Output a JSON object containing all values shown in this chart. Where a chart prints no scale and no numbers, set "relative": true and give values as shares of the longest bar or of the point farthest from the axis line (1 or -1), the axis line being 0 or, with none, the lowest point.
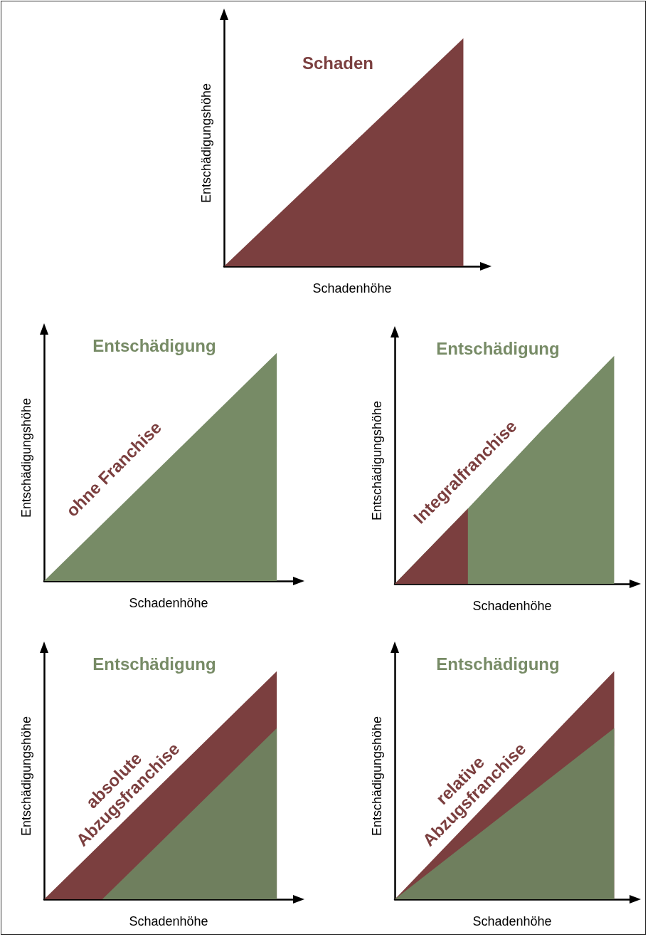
{
  "chart_data": [
    {
      "type": "area",
      "title": "Schaden",
      "xlabel": "Schadenhöhe",
      "ylabel": "Entschädigungshöhe",
      "relative": true,
      "categories": [
        null,
        null
      ],
      "series": [
        {
          "color": "#7b3f3f",
          "values": [
            0,
            1
          ]
        }
      ]
    },
    {
      "type": "area",
      "title": "Entschädigung",
      "xlabel": "Schadenhöhe",
      "ylabel": "Entschädigungshöhe",
      "relative": true,
      "categories": [
        null,
        null
      ],
      "series": [
        {
          "color": "#778b66",
          "values": [
            0,
            1
          ]
        }
      ],
      "annotations": [
        "ohne Franchise"
      ]
    },
    {
      "type": "area",
      "title": "Entschädigung",
      "xlabel": "Schadenhöhe",
      "ylabel": "Entschädigungshöhe",
      "relative": true,
      "categories": [
        null,
        null,
        null,
        null
      ],
      "series": [
        {
          "color": "#778b66",
          "values": [
            0,
            0.33,
            0.67,
            1
          ]
        },
        {
          "color": "#7b3f3f",
          "values": [
            0,
            0.33,
            null,
            null
          ]
        }
      ],
      "annotations": [
        "Integralfranchise"
      ]
    },
    {
      "type": "area",
      "title": "Entschädigung",
      "xlabel": "Schadenhöhe",
      "ylabel": "Entschädigungshöhe",
      "relative": true,
      "categories": [
        null,
        null,
        null,
        null,
        null
      ],
      "series": [
        {
          "color": "#7b3f3f",
          "values": [
            0,
            0.25,
            0.5,
            0.75,
            1
          ]
        },
        {
          "color": "#6f7f5e",
          "values": [
            0,
            0,
            0.25,
            0.5,
            0.75
          ]
        }
      ],
      "annotations": [
        "absolute\nAbzugsfranchise"
      ]
    },
    {
      "type": "area",
      "title": "Entschädigung",
      "xlabel": "Schadenhöhe",
      "ylabel": "Entschädigungshöhe",
      "relative": true,
      "categories": [
        null,
        null
      ],
      "series": [
        {
          "color": "#7b3f3f",
          "values": [
            0,
            1
          ]
        },
        {
          "color": "#6f7f5e",
          "values": [
            0,
            0.75
          ]
        }
      ],
      "annotations": [
        "relative\nAbzugsfranchise"
      ]
    }
  ]
}
